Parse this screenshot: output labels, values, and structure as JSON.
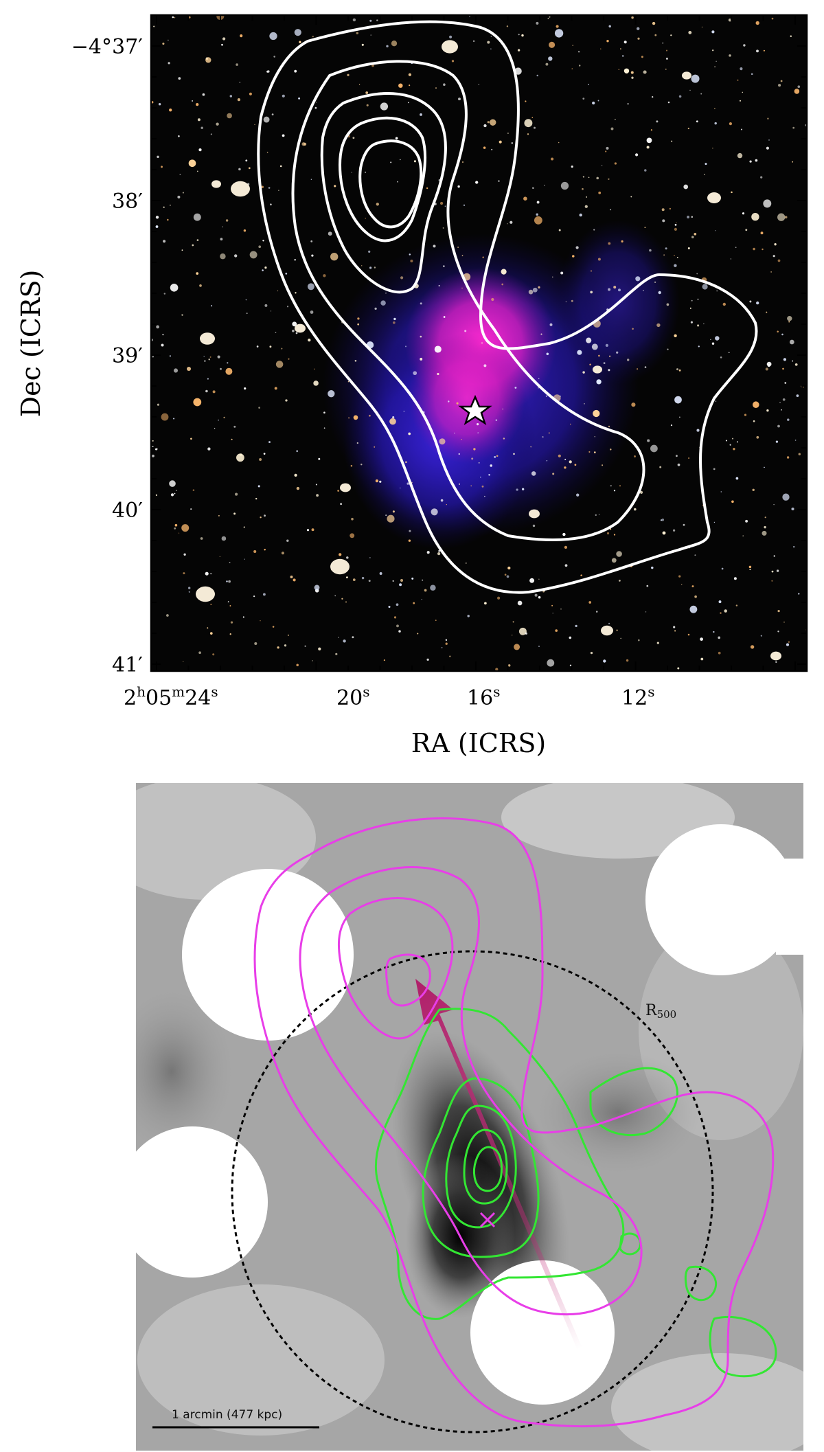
{
  "top_panel": {
    "xlabel": "RA (ICRS)",
    "ylabel": "Dec (ICRS)",
    "x_ticks": [
      {
        "main": "2",
        "sup1": "h",
        "mid": "05",
        "sup2": "m",
        "end": "24",
        "sup3": "s"
      },
      {
        "main": "20",
        "sup1": "s"
      },
      {
        "main": "16",
        "sup1": "s"
      },
      {
        "main": "12",
        "sup1": "s"
      }
    ],
    "y_ticks": [
      "−4°37′",
      "38′",
      "39′",
      "40′",
      "41′"
    ],
    "contour_color": "#ffffff",
    "marker": "star-icon"
  },
  "bottom_panel": {
    "r500_label": "R",
    "r500_sub": "500",
    "scale_bar_label": "1 arcmin (477 kpc)",
    "magenta_color": "#e83ee8",
    "green_color": "#33e633",
    "arrow_color": "#c02a78",
    "marker": "x-icon"
  }
}
